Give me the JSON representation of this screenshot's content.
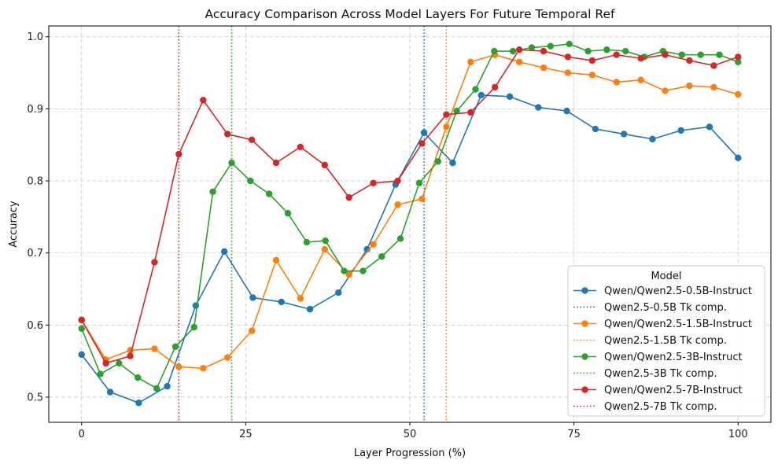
{
  "chart_data": {
    "type": "line",
    "title": "Accuracy Comparison Across Model Layers For Future Temporal Ref",
    "xlabel": "Layer Progression (%)",
    "ylabel": "Accuracy",
    "xlim": [
      -5,
      105
    ],
    "ylim": [
      0.465,
      1.015
    ],
    "xticks": [
      0,
      25,
      50,
      75,
      100
    ],
    "yticks": [
      0.5,
      0.6,
      0.7,
      0.8,
      0.9,
      1.0
    ],
    "ytick_labels": [
      "0.5",
      "0.6",
      "0.7",
      "0.8",
      "0.9",
      "1.0"
    ],
    "grid": true,
    "legend_title": "Model",
    "legend_position": "lower-right",
    "series": [
      {
        "name": "Qwen/Qwen2.5-0.5B-Instruct",
        "color": "#1f77b4",
        "x": [
          0,
          4.35,
          8.7,
          13.04,
          17.39,
          21.74,
          26.09,
          30.43,
          34.78,
          39.13,
          43.48,
          47.83,
          52.17,
          56.52,
          60.87,
          65.22,
          69.57,
          73.91,
          78.26,
          82.61,
          86.96,
          91.3,
          95.65,
          100
        ],
        "y": [
          0.559,
          0.507,
          0.492,
          0.515,
          0.627,
          0.702,
          0.638,
          0.632,
          0.622,
          0.645,
          0.705,
          0.795,
          0.867,
          0.825,
          0.919,
          0.917,
          0.902,
          0.897,
          0.872,
          0.865,
          0.858,
          0.87,
          0.875,
          0.832
        ]
      },
      {
        "name": "Qwen/Qwen2.5-1.5B-Instruct",
        "color": "#ff7f0e",
        "x": [
          0,
          3.7,
          7.41,
          11.11,
          14.81,
          18.52,
          22.22,
          25.93,
          29.63,
          33.33,
          37.04,
          40.74,
          44.44,
          48.15,
          51.85,
          55.56,
          59.26,
          62.96,
          66.67,
          70.37,
          74.07,
          77.78,
          81.48,
          85.19,
          88.89,
          92.59,
          96.3,
          100
        ],
        "y": [
          0.607,
          0.552,
          0.565,
          0.567,
          0.542,
          0.54,
          0.555,
          0.592,
          0.69,
          0.637,
          0.705,
          0.67,
          0.712,
          0.767,
          0.775,
          0.875,
          0.965,
          0.975,
          0.965,
          0.957,
          0.95,
          0.947,
          0.937,
          0.94,
          0.925,
          0.932,
          0.93,
          0.92
        ]
      },
      {
        "name": "Qwen/Qwen2.5-3B-Instruct",
        "color": "#2ca02c",
        "x": [
          0,
          2.86,
          5.71,
          8.57,
          11.43,
          14.29,
          17.14,
          20.0,
          22.86,
          25.71,
          28.57,
          31.43,
          34.29,
          37.14,
          40.0,
          42.86,
          45.71,
          48.57,
          51.43,
          54.29,
          57.14,
          60.0,
          62.86,
          65.71,
          68.57,
          71.43,
          74.29,
          77.14,
          80.0,
          82.86,
          85.71,
          88.57,
          91.43,
          94.29,
          97.14,
          100
        ],
        "y": [
          0.595,
          0.532,
          0.547,
          0.527,
          0.512,
          0.57,
          0.597,
          0.785,
          0.825,
          0.8,
          0.782,
          0.755,
          0.715,
          0.717,
          0.675,
          0.675,
          0.695,
          0.72,
          0.797,
          0.827,
          0.897,
          0.927,
          0.98,
          0.98,
          0.985,
          0.987,
          0.99,
          0.98,
          0.982,
          0.98,
          0.972,
          0.98,
          0.975,
          0.975,
          0.975,
          0.965
        ]
      },
      {
        "name": "Qwen/Qwen2.5-7B-Instruct",
        "color": "#d62728",
        "x": [
          0,
          3.7,
          7.41,
          11.11,
          14.81,
          18.52,
          22.22,
          25.93,
          29.63,
          33.33,
          37.04,
          40.74,
          44.44,
          48.15,
          51.85,
          55.56,
          59.26,
          62.96,
          66.67,
          70.37,
          74.07,
          77.78,
          81.48,
          85.19,
          88.89,
          92.59,
          96.3,
          100
        ],
        "y": [
          0.607,
          0.547,
          0.557,
          0.687,
          0.837,
          0.912,
          0.865,
          0.857,
          0.825,
          0.847,
          0.822,
          0.777,
          0.797,
          0.8,
          0.852,
          0.892,
          0.895,
          0.93,
          0.982,
          0.98,
          0.972,
          0.967,
          0.975,
          0.97,
          0.975,
          0.967,
          0.96,
          0.972
        ]
      }
    ],
    "vlines": [
      {
        "name": "Qwen2.5-0.5B Tk comp.",
        "x": 52.17,
        "color": "#1f77b4"
      },
      {
        "name": "Qwen2.5-1.5B Tk comp.",
        "x": 55.56,
        "color": "#ff7f0e"
      },
      {
        "name": "Qwen2.5-3B Tk comp.",
        "x": 22.86,
        "color": "#2ca02c"
      },
      {
        "name": "Qwen2.5-7B Tk comp.",
        "x": 14.81,
        "color": "#d62728"
      }
    ]
  }
}
